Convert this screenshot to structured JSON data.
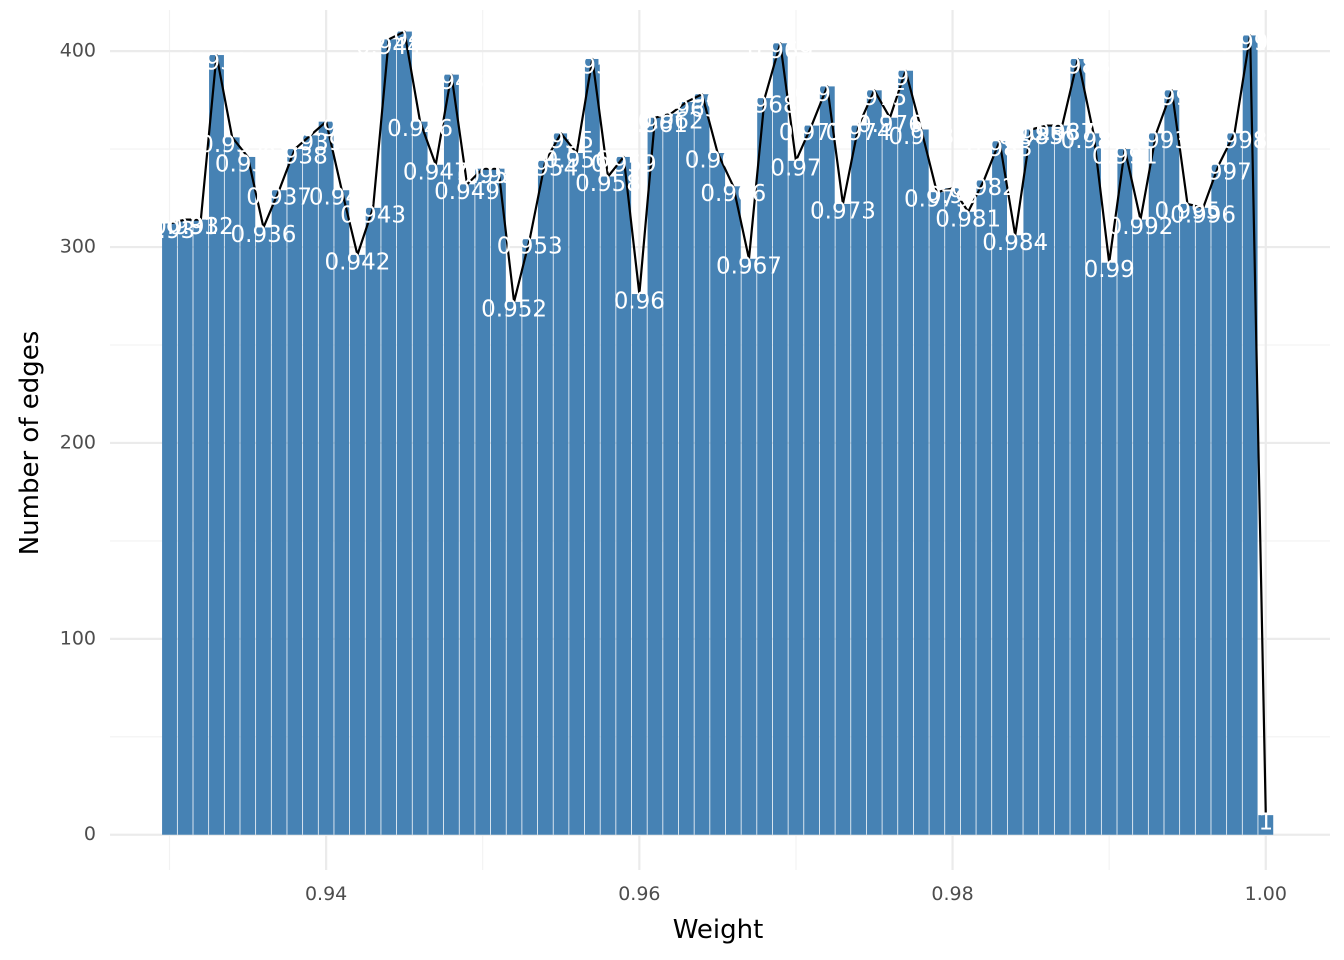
{
  "chart_data": {
    "type": "bar",
    "title": "",
    "xlabel": "Weight",
    "ylabel": "Number of edges",
    "xlim": [
      0.9262,
      1.0041
    ],
    "ylim": [
      -18,
      421
    ],
    "x_ticks": [
      0.94,
      0.96,
      0.98,
      1.0
    ],
    "x_tick_labels": [
      "0.94",
      "0.96",
      "0.98",
      "1.00"
    ],
    "y_ticks": [
      0,
      100,
      200,
      300,
      400
    ],
    "y_tick_labels": [
      "0",
      "100",
      "200",
      "300",
      "400"
    ],
    "grid": true,
    "bar_color": "#4682B4",
    "line_color": "#000000",
    "label_color": "#FFFFFF",
    "bar_width": 0.00095,
    "x": [
      0.93,
      0.931,
      0.932,
      0.933,
      0.934,
      0.935,
      0.936,
      0.937,
      0.938,
      0.939,
      0.94,
      0.941,
      0.942,
      0.943,
      0.944,
      0.945,
      0.946,
      0.947,
      0.948,
      0.949,
      0.95,
      0.951,
      0.952,
      0.953,
      0.954,
      0.955,
      0.956,
      0.957,
      0.958,
      0.959,
      0.96,
      0.961,
      0.962,
      0.963,
      0.964,
      0.965,
      0.966,
      0.967,
      0.968,
      0.969,
      0.97,
      0.971,
      0.972,
      0.973,
      0.974,
      0.975,
      0.976,
      0.977,
      0.978,
      0.979,
      0.98,
      0.981,
      0.982,
      0.983,
      0.984,
      0.985,
      0.986,
      0.987,
      0.988,
      0.989,
      0.99,
      0.991,
      0.992,
      0.993,
      0.994,
      0.995,
      0.996,
      0.997,
      0.998,
      0.999,
      1.0
    ],
    "values": [
      312,
      314,
      314,
      398,
      356,
      346,
      310,
      329,
      350,
      357,
      364,
      329,
      296,
      320,
      406,
      410,
      364,
      342,
      388,
      332,
      340,
      340,
      272,
      304,
      344,
      358,
      348,
      396,
      336,
      346,
      276,
      366,
      368,
      374,
      378,
      348,
      331,
      294,
      376,
      404,
      344,
      362,
      382,
      322,
      362,
      380,
      366,
      390,
      360,
      328,
      330,
      318,
      334,
      354,
      306,
      360,
      362,
      362,
      396,
      358,
      292,
      350,
      314,
      358,
      380,
      322,
      320,
      342,
      358,
      408,
      10
    ],
    "labels": [
      "0.93",
      "0.931",
      "0.932",
      "0.933",
      "0.934",
      "0.935",
      "0.936",
      "0.937",
      "0.938",
      "0.939",
      "0.94",
      "0.941",
      "0.942",
      "0.943",
      "0.944",
      "0.945",
      "0.946",
      "0.947",
      "0.948",
      "0.949",
      "0.95",
      "0.951",
      "0.952",
      "0.953",
      "0.954",
      "0.955",
      "0.956",
      "0.957",
      "0.958",
      "0.959",
      "0.96",
      "0.961",
      "0.962",
      "0.963",
      "0.964",
      "0.965",
      "0.966",
      "0.967",
      "0.968",
      "0.969",
      "0.97",
      "0.971",
      "0.972",
      "0.973",
      "0.974",
      "0.975",
      "0.976",
      "0.977",
      "0.978",
      "0.979",
      "0.98",
      "0.981",
      "0.982",
      "0.983",
      "0.984",
      "0.985",
      "0.986",
      "0.987",
      "0.988",
      "0.989",
      "0.99",
      "0.991",
      "0.992",
      "0.993",
      "0.994",
      "0.995",
      "0.996",
      "0.997",
      "0.998",
      "0.999",
      "1"
    ]
  }
}
